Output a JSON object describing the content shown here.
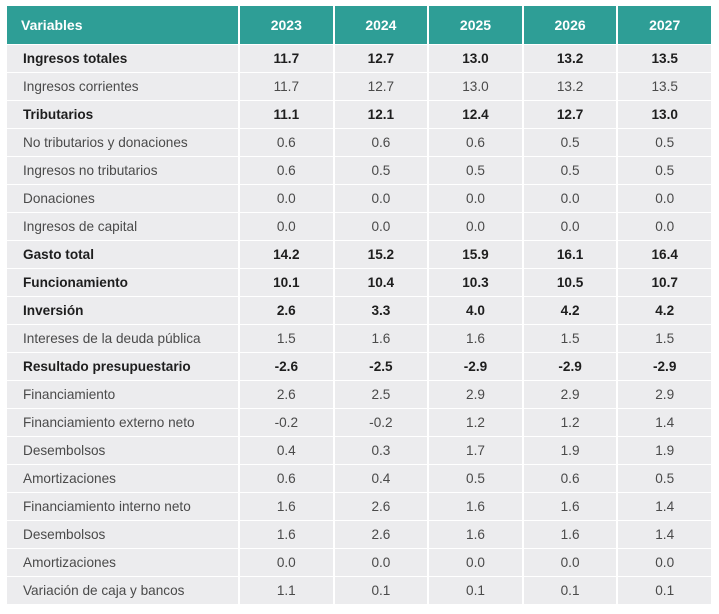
{
  "table": {
    "header": {
      "variables": "Variables",
      "years": [
        "2023",
        "2024",
        "2025",
        "2026",
        "2027"
      ]
    },
    "rows": [
      {
        "label": "Ingresos totales",
        "bold": true,
        "values": [
          "11.7",
          "12.7",
          "13.0",
          "13.2",
          "13.5"
        ]
      },
      {
        "label": "Ingresos corrientes",
        "bold": false,
        "values": [
          "11.7",
          "12.7",
          "13.0",
          "13.2",
          "13.5"
        ]
      },
      {
        "label": "Tributarios",
        "bold": true,
        "values": [
          "11.1",
          "12.1",
          "12.4",
          "12.7",
          "13.0"
        ]
      },
      {
        "label": "No tributarios y donaciones",
        "bold": false,
        "values": [
          "0.6",
          "0.6",
          "0.6",
          "0.5",
          "0.5"
        ]
      },
      {
        "label": "Ingresos no tributarios",
        "bold": false,
        "values": [
          "0.6",
          "0.5",
          "0.5",
          "0.5",
          "0.5"
        ]
      },
      {
        "label": "Donaciones",
        "bold": false,
        "values": [
          "0.0",
          "0.0",
          "0.0",
          "0.0",
          "0.0"
        ]
      },
      {
        "label": "Ingresos de capital",
        "bold": false,
        "values": [
          "0.0",
          "0.0",
          "0.0",
          "0.0",
          "0.0"
        ]
      },
      {
        "label": "Gasto total",
        "bold": true,
        "values": [
          "14.2",
          "15.2",
          "15.9",
          "16.1",
          "16.4"
        ]
      },
      {
        "label": "Funcionamiento",
        "bold": true,
        "values": [
          "10.1",
          "10.4",
          "10.3",
          "10.5",
          "10.7"
        ]
      },
      {
        "label": "Inversión",
        "bold": true,
        "values": [
          "2.6",
          "3.3",
          "4.0",
          "4.2",
          "4.2"
        ]
      },
      {
        "label": "Intereses de la deuda pública",
        "bold": false,
        "values": [
          "1.5",
          "1.6",
          "1.6",
          "1.5",
          "1.5"
        ]
      },
      {
        "label": "Resultado presupuestario",
        "bold": true,
        "values": [
          "-2.6",
          "-2.5",
          "-2.9",
          "-2.9",
          "-2.9"
        ]
      },
      {
        "label": "Financiamiento",
        "bold": false,
        "values": [
          "2.6",
          "2.5",
          "2.9",
          "2.9",
          "2.9"
        ]
      },
      {
        "label": "Financiamiento externo neto",
        "bold": false,
        "values": [
          "-0.2",
          "-0.2",
          "1.2",
          "1.2",
          "1.4"
        ]
      },
      {
        "label": "Desembolsos",
        "bold": false,
        "values": [
          "0.4",
          "0.3",
          "1.7",
          "1.9",
          "1.9"
        ]
      },
      {
        "label": "Amortizaciones",
        "bold": false,
        "values": [
          "0.6",
          "0.4",
          "0.5",
          "0.6",
          "0.5"
        ]
      },
      {
        "label": "Financiamiento interno neto",
        "bold": false,
        "values": [
          "1.6",
          "2.6",
          "1.6",
          "1.6",
          "1.4"
        ]
      },
      {
        "label": "Desembolsos",
        "bold": false,
        "values": [
          "1.6",
          "2.6",
          "1.6",
          "1.6",
          "1.4"
        ]
      },
      {
        "label": "Amortizaciones",
        "bold": false,
        "values": [
          "0.0",
          "0.0",
          "0.0",
          "0.0",
          "0.0"
        ]
      },
      {
        "label": "Variación de caja y bancos",
        "bold": false,
        "values": [
          "1.1",
          "0.1",
          "0.1",
          "0.1",
          "0.1"
        ]
      }
    ]
  },
  "colors": {
    "header_bg": "#2e9e96",
    "row_bg": "#ececee"
  }
}
